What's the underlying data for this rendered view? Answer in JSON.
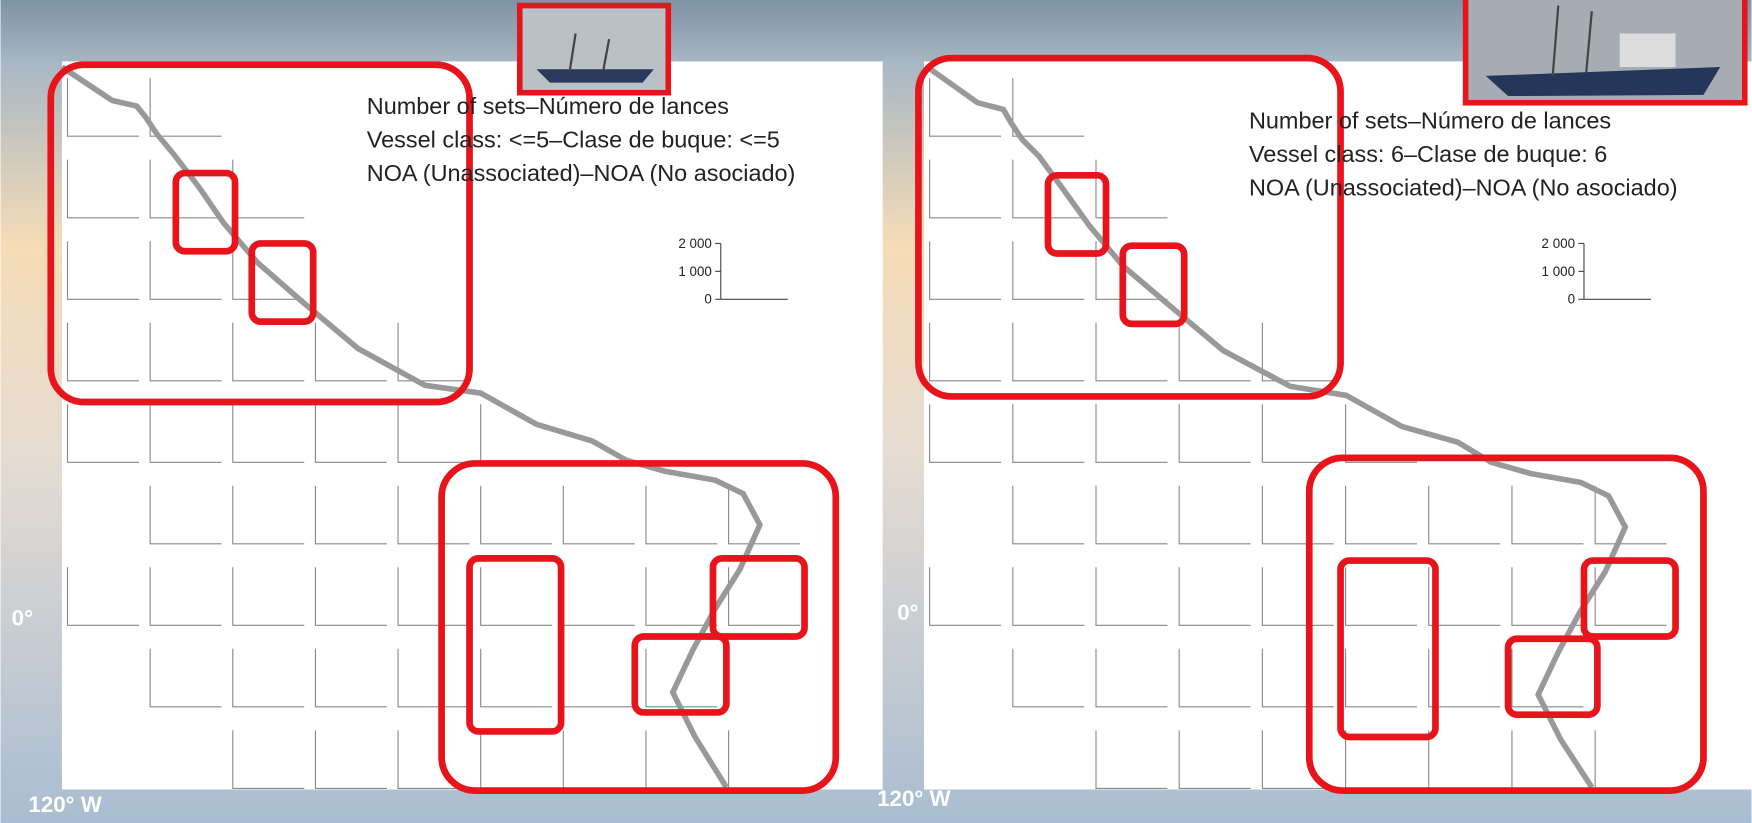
{
  "panels": [
    {
      "title_lines": [
        "Number of sets–Número de lances",
        "Vessel class: <=5–Clase de buque: <=5",
        "NOA (Unassociated)–NOA (No asociado)"
      ],
      "scale_ticks": [
        {
          "value": 2000,
          "label": "2 000"
        },
        {
          "value": 1000,
          "label": "1 000"
        },
        0
      ],
      "equator_label": "0°",
      "longitude_label": "120° W"
    },
    {
      "title_lines": [
        "Number of sets–Número de lances",
        "Vessel class: 6–Clase de buque: 6",
        "NOA (Unassociated)–NOA (No asociado)"
      ],
      "scale_ticks": [
        {
          "value": 2000,
          "label": "2 000"
        },
        {
          "value": 1000,
          "label": "1 000"
        },
        0
      ],
      "equator_label": "0°",
      "longitude_label": "120° W"
    }
  ]
}
